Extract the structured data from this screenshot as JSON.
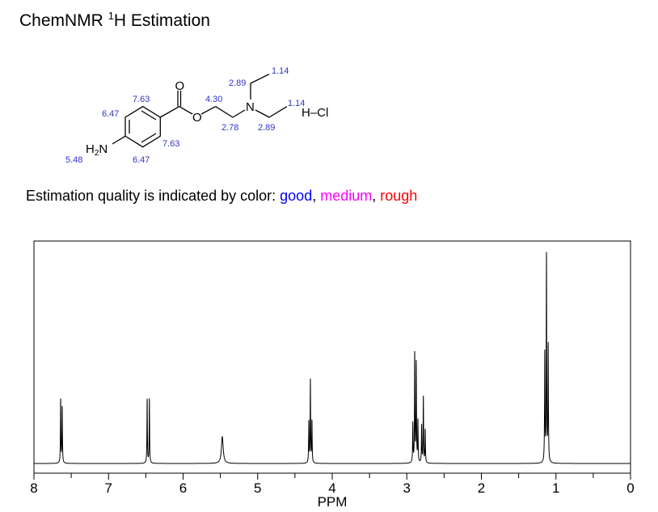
{
  "title": {
    "prefix": "ChemNMR ",
    "sup": "1",
    "suffix": "H Estimation"
  },
  "molecule": {
    "atoms": {
      "o_carbonyl": "O",
      "o_ester": "O",
      "n_amine": "N",
      "h2n": "H",
      "h2n_sub": "2",
      "h2n_n": "N",
      "hcl": "H–Cl"
    },
    "shifts": [
      "1.14",
      "2.89",
      "7.63",
      "4.30",
      "1.14",
      "6.47",
      "2.78",
      "2.89",
      "7.63",
      "5.48",
      "6.47"
    ],
    "shift_color": "#3333cc"
  },
  "quality": {
    "prefix": "Estimation quality is indicated by color: ",
    "good": "good",
    "sep1": ", ",
    "medium": "medium",
    "sep2": ", ",
    "rough": "rough",
    "colors": {
      "good": "#0000ff",
      "medium": "#ff00ff",
      "rough": "#ff0000"
    }
  },
  "chart_data": {
    "type": "line",
    "xlabel": "PPM",
    "xlim": [
      8,
      0
    ],
    "x_reversed": true,
    "xticks": [
      "8",
      "7",
      "6",
      "5",
      "4",
      "3",
      "2",
      "1",
      "0"
    ],
    "ylim": [
      0,
      100
    ],
    "grid": false,
    "peaks": [
      {
        "ppm": 7.642,
        "intensity": 31
      },
      {
        "ppm": 7.621,
        "intensity": 27
      },
      {
        "ppm": 6.482,
        "intensity": 31
      },
      {
        "ppm": 6.452,
        "intensity": 31
      },
      {
        "ppm": 5.474,
        "intensity": 13,
        "broad": true
      },
      {
        "ppm": 4.314,
        "intensity": 20
      },
      {
        "ppm": 4.293,
        "intensity": 40
      },
      {
        "ppm": 4.272,
        "intensity": 20
      },
      {
        "ppm": 2.919,
        "intensity": 19
      },
      {
        "ppm": 2.894,
        "intensity": 53
      },
      {
        "ppm": 2.873,
        "intensity": 48
      },
      {
        "ppm": 2.851,
        "intensity": 20
      },
      {
        "ppm": 2.801,
        "intensity": 18
      },
      {
        "ppm": 2.778,
        "intensity": 32
      },
      {
        "ppm": 2.753,
        "intensity": 16
      },
      {
        "ppm": 1.15,
        "intensity": 53
      },
      {
        "ppm": 1.127,
        "intensity": 100
      },
      {
        "ppm": 1.104,
        "intensity": 56
      }
    ]
  }
}
